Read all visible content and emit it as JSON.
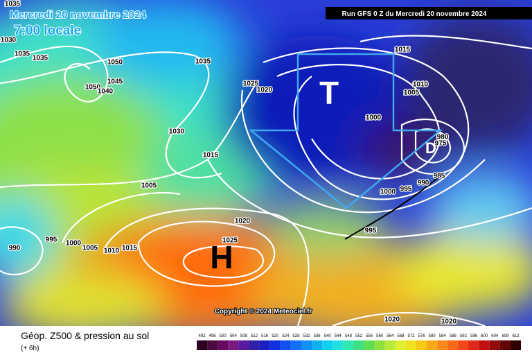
{
  "header": {
    "date": "Mercredi 20 novembre 2024",
    "time": "7:00 locale",
    "run": "Run GFS 0 Z du Mercredi 20 novembre 2024"
  },
  "map": {
    "pressure_labels": [
      "1035",
      "1030",
      "1035",
      "1035",
      "1050",
      "1045",
      "1050",
      "1040",
      "1035",
      "1025",
      "1020",
      "1030",
      "1015",
      "1005",
      "1020",
      "1025",
      "995",
      "990",
      "1000",
      "1005",
      "1010",
      "1015",
      "1015",
      "1010",
      "1005",
      "1000",
      "980",
      "975",
      "985",
      "990",
      "995",
      "1000",
      "995",
      "1020",
      "1020"
    ],
    "centers": [
      "T",
      "H",
      "D"
    ],
    "copyright": "Copyright © 2024 Meteociel.fr"
  },
  "legend": {
    "title": "Géop. Z500 & pression au sol",
    "subtitle": "(+ 6h)",
    "scale": [
      "492",
      "496",
      "500",
      "504",
      "508",
      "512",
      "516",
      "520",
      "524",
      "528",
      "532",
      "536",
      "540",
      "544",
      "548",
      "552",
      "556",
      "560",
      "564",
      "568",
      "572",
      "576",
      "580",
      "584",
      "588",
      "592",
      "596",
      "600",
      "604",
      "608",
      "612"
    ]
  }
}
